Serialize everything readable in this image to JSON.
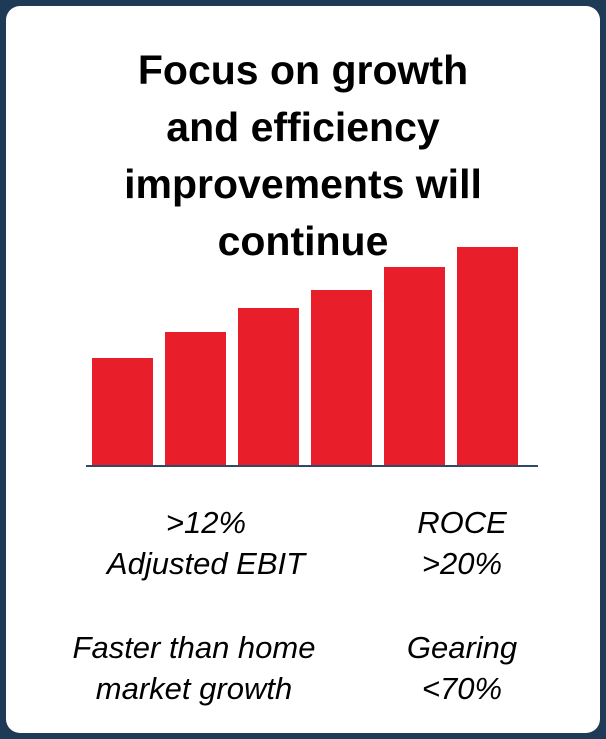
{
  "title_lines": [
    "Focus on growth",
    "and efficiency",
    "improvements will",
    "continue"
  ],
  "colors": {
    "background": "#1f3a56",
    "card": "#ffffff",
    "bar": "#e81e2a",
    "baseline": "#2e4a66"
  },
  "chart_data": {
    "type": "bar",
    "title": "Focus on growth and efficiency improvements will continue",
    "categories": [
      "",
      "",
      "",
      "",
      "",
      ""
    ],
    "values": [
      108,
      134,
      158,
      176,
      199,
      219
    ],
    "ylim": [
      0,
      230
    ],
    "grid": false,
    "axes_visible": false
  },
  "metrics": {
    "ebit": {
      "line1": ">12%",
      "line2": "Adjusted EBIT"
    },
    "roce": {
      "line1": "ROCE",
      "line2": ">20%"
    },
    "growth": {
      "line1": "Faster than home",
      "line2": "market growth"
    },
    "gearing": {
      "line1": "Gearing",
      "line2": "<70%"
    }
  }
}
